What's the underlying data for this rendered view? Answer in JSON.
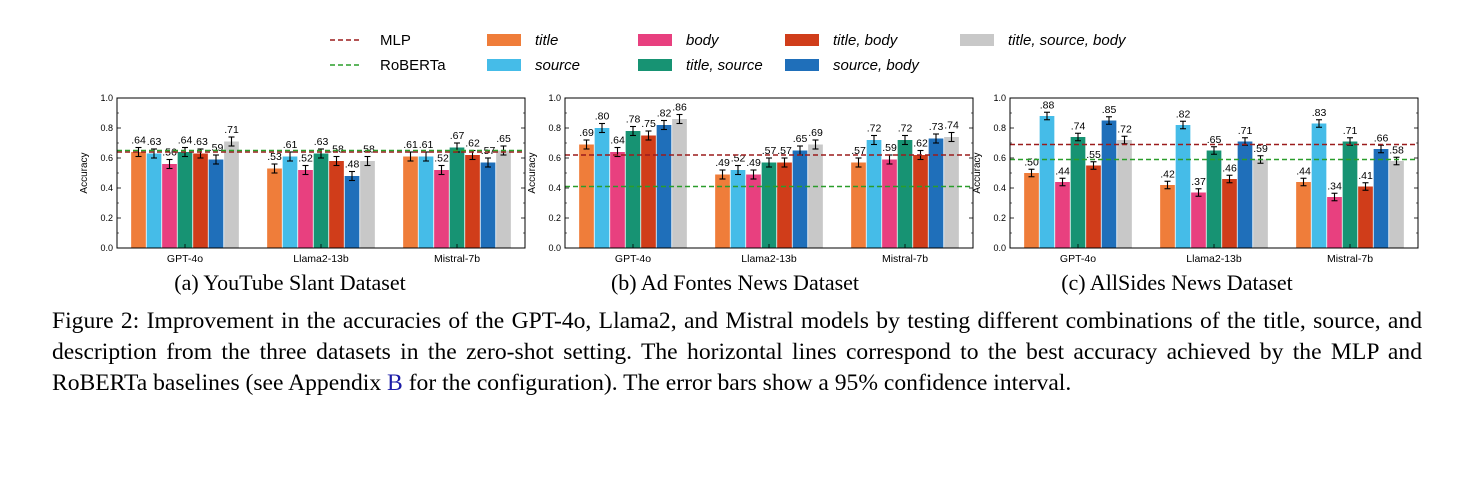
{
  "legend": {
    "lines": [
      {
        "label": "MLP",
        "color": "#9b1c1c"
      },
      {
        "label": "RoBERTa",
        "color": "#2a9d2a"
      }
    ],
    "bars": [
      {
        "label": "title",
        "color": "#ef7d3a"
      },
      {
        "label": "source",
        "color": "#45bce8"
      },
      {
        "label": "body",
        "color": "#e8407f"
      },
      {
        "label": "title, source",
        "color": "#179373"
      },
      {
        "label": "title, body",
        "color": "#d03d1a"
      },
      {
        "label": "source, body",
        "color": "#1f6fba"
      },
      {
        "label": "title, source, body",
        "color": "#c8c8c8"
      }
    ]
  },
  "chart_data": [
    {
      "type": "bar",
      "subcaption": "(a) YouTube Slant Dataset",
      "ylabel": "Accuracy",
      "ylim": [
        0,
        1.0
      ],
      "yticks": [
        "0.0",
        "0.2",
        "0.4",
        "0.6",
        "0.8",
        "1.0"
      ],
      "categories": [
        "GPT-4o",
        "Llama2-13b",
        "Mistral-7b"
      ],
      "series": [
        {
          "name": "title",
          "values": [
            0.64,
            0.53,
            0.61
          ],
          "labels": [
            ".64",
            ".53",
            ".61"
          ]
        },
        {
          "name": "source",
          "values": [
            0.63,
            0.61,
            0.61
          ],
          "labels": [
            ".63",
            ".61",
            ".61"
          ]
        },
        {
          "name": "body",
          "values": [
            0.56,
            0.52,
            0.52
          ],
          "labels": [
            ".56",
            ".52",
            ".52"
          ]
        },
        {
          "name": "title, source",
          "values": [
            0.64,
            0.63,
            0.67
          ],
          "labels": [
            ".64",
            ".63",
            ".67"
          ]
        },
        {
          "name": "title, body",
          "values": [
            0.63,
            0.58,
            0.62
          ],
          "labels": [
            ".63",
            ".58",
            ".62"
          ]
        },
        {
          "name": "source, body",
          "values": [
            0.59,
            0.48,
            0.57
          ],
          "labels": [
            ".59",
            ".48",
            ".57"
          ]
        },
        {
          "name": "title, source, body",
          "values": [
            0.71,
            0.58,
            0.65
          ],
          "labels": [
            ".71",
            ".58",
            ".65"
          ]
        }
      ],
      "error": 0.03,
      "baselines": {
        "MLP": 0.64,
        "RoBERTa": 0.65
      }
    },
    {
      "type": "bar",
      "subcaption": "(b) Ad Fontes News Dataset",
      "ylabel": "Accuracy",
      "ylim": [
        0,
        1.0
      ],
      "yticks": [
        "0.0",
        "0.2",
        "0.4",
        "0.6",
        "0.8",
        "1.0"
      ],
      "categories": [
        "GPT-4o",
        "Llama2-13b",
        "Mistral-7b"
      ],
      "series": [
        {
          "name": "title",
          "values": [
            0.69,
            0.49,
            0.57
          ],
          "labels": [
            ".69",
            ".49",
            ".57"
          ]
        },
        {
          "name": "source",
          "values": [
            0.8,
            0.52,
            0.72
          ],
          "labels": [
            ".80",
            ".52",
            ".72"
          ]
        },
        {
          "name": "body",
          "values": [
            0.64,
            0.49,
            0.59
          ],
          "labels": [
            ".64",
            ".49",
            ".59"
          ]
        },
        {
          "name": "title, source",
          "values": [
            0.78,
            0.57,
            0.72
          ],
          "labels": [
            ".78",
            ".57",
            ".72"
          ]
        },
        {
          "name": "title, body",
          "values": [
            0.75,
            0.57,
            0.62
          ],
          "labels": [
            ".75",
            ".57",
            ".62"
          ]
        },
        {
          "name": "source, body",
          "values": [
            0.82,
            0.65,
            0.73
          ],
          "labels": [
            ".82",
            ".65",
            ".73"
          ]
        },
        {
          "name": "title, source, body",
          "values": [
            0.86,
            0.69,
            0.74
          ],
          "labels": [
            ".86",
            ".69",
            ".74"
          ]
        }
      ],
      "error": 0.03,
      "baselines": {
        "MLP": 0.62,
        "RoBERTa": 0.41
      }
    },
    {
      "type": "bar",
      "subcaption": "(c) AllSides News Dataset",
      "ylabel": "Accuracy",
      "ylim": [
        0,
        1.0
      ],
      "yticks": [
        "0.0",
        "0.2",
        "0.4",
        "0.6",
        "0.8",
        "1.0"
      ],
      "categories": [
        "GPT-4o",
        "Llama2-13b",
        "Mistral-7b"
      ],
      "series": [
        {
          "name": "title",
          "values": [
            0.5,
            0.42,
            0.44
          ],
          "labels": [
            ".50",
            ".42",
            ".44"
          ]
        },
        {
          "name": "source",
          "values": [
            0.88,
            0.82,
            0.83
          ],
          "labels": [
            ".88",
            ".82",
            ".83"
          ]
        },
        {
          "name": "body",
          "values": [
            0.44,
            0.37,
            0.34
          ],
          "labels": [
            ".44",
            ".37",
            ".34"
          ]
        },
        {
          "name": "title, source",
          "values": [
            0.74,
            0.65,
            0.71
          ],
          "labels": [
            ".74",
            ".65",
            ".71"
          ]
        },
        {
          "name": "title, body",
          "values": [
            0.55,
            0.46,
            0.41
          ],
          "labels": [
            ".55",
            ".46",
            ".41"
          ]
        },
        {
          "name": "source, body",
          "values": [
            0.85,
            0.71,
            0.66
          ],
          "labels": [
            ".85",
            ".71",
            ".66"
          ]
        },
        {
          "name": "title, source, body",
          "values": [
            0.72,
            0.59,
            0.58
          ],
          "labels": [
            ".72",
            ".59",
            ".58"
          ]
        }
      ],
      "error": 0.025,
      "baselines": {
        "MLP": 0.69,
        "RoBERTa": 0.59
      }
    }
  ],
  "caption": {
    "prefix": "Figure 2: Improvement in the accuracies of the GPT-4o, Llama2, and Mistral models by testing different combinations of the title, source, and description from the three datasets in the zero-shot setting. The horizontal lines correspond to the best accuracy achieved by the MLP and RoBERTa baselines (see Appendix ",
    "link": "B",
    "suffix": " for the configuration). The error bars show a 95% confidence interval."
  }
}
